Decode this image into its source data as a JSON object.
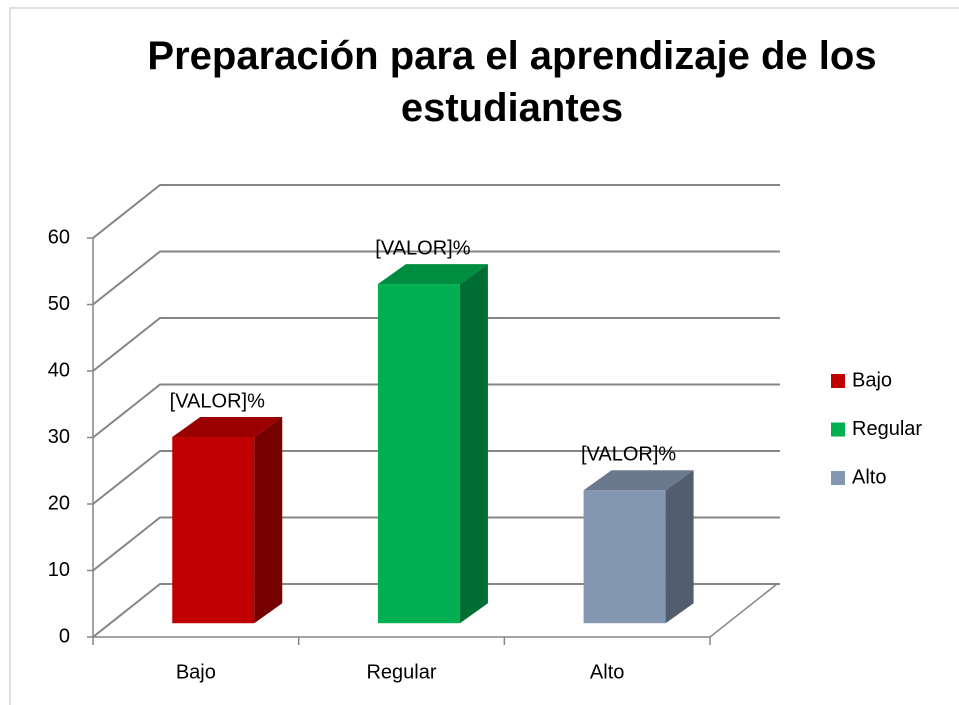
{
  "chart_data": {
    "type": "bar3d",
    "title": "Preparación para el aprendizaje de los estudiantes",
    "categories": [
      "Bajo",
      "Regular",
      "Alto"
    ],
    "values": [
      28,
      51,
      20
    ],
    "value_labels": [
      "[VALOR]%",
      "[VALOR]%",
      "[VALOR]%"
    ],
    "colors": [
      "#c00000",
      "#00b050",
      "#8497b0"
    ],
    "ylim": [
      0,
      60
    ],
    "yticks": [
      0,
      10,
      20,
      30,
      40,
      50,
      60
    ],
    "grid": true,
    "legend": "right"
  }
}
